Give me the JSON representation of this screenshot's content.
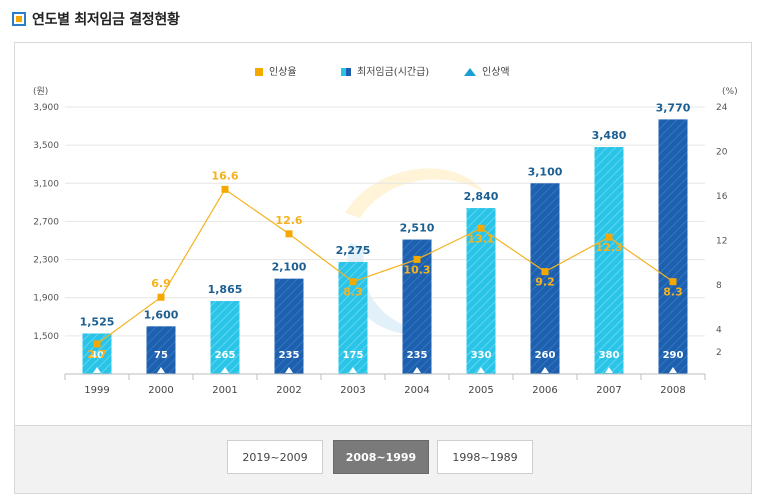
{
  "page": {
    "title": "연도별 최저임금 결정현황"
  },
  "periods": {
    "items": [
      "2019~2009",
      "2008~1999",
      "1998~1989"
    ],
    "active_index": 1
  },
  "chart_data": {
    "type": "bar",
    "categories": [
      "1999",
      "2000",
      "2001",
      "2002",
      "2003",
      "2004",
      "2005",
      "2006",
      "2007",
      "2008"
    ],
    "series": [
      {
        "name": "최저임금(시간급)",
        "values": [
          1525,
          1600,
          1865,
          2100,
          2275,
          2510,
          2840,
          3100,
          3480,
          3770
        ],
        "labels": [
          "1,525",
          "1,600",
          "1,865",
          "2,100",
          "2,275",
          "2,510",
          "2,840",
          "3,100",
          "3,480",
          "3,770"
        ]
      },
      {
        "name": "인상율",
        "values": [
          2.7,
          6.9,
          16.6,
          12.6,
          8.3,
          10.3,
          13.1,
          9.2,
          12.3,
          8.3
        ],
        "labels": [
          "2.7",
          "6.9",
          "16.6",
          "12.6",
          "8.3",
          "10.3",
          "13.1",
          "9.2",
          "12.3",
          "8.3"
        ]
      },
      {
        "name": "인상액",
        "values": [
          40,
          75,
          265,
          235,
          175,
          235,
          330,
          260,
          380,
          290
        ],
        "labels": [
          "40",
          "75",
          "265",
          "235",
          "175",
          "235",
          "330",
          "260",
          "380",
          "290"
        ]
      }
    ],
    "bar_colors": [
      "#29c4e8",
      "#1e5fae",
      "#29c4e8",
      "#1e5fae",
      "#29c4e8",
      "#1e5fae",
      "#29c4e8",
      "#1e5fae",
      "#29c4e8",
      "#1e5fae"
    ],
    "line_color": "#f5b21e",
    "marker_color": "#f5a800",
    "value_label_color": "#1d5f91",
    "legend": {
      "placement": "top-center",
      "items": [
        "인상율",
        "최저임금(시간급)",
        "인상액"
      ]
    },
    "y_left": {
      "label": "(원)",
      "ylim": [
        1100,
        3900
      ],
      "ticks": [
        1500,
        1900,
        2300,
        2700,
        3100,
        3500,
        3900
      ],
      "tick_labels": [
        "1,500",
        "1,900",
        "2,300",
        "2,700",
        "3,100",
        "3,500",
        "3,900"
      ]
    },
    "y_right": {
      "label": "(%)",
      "ylim": [
        0,
        24
      ],
      "ticks": [
        2,
        4,
        8,
        12,
        16,
        20,
        24
      ],
      "tick_labels": [
        "2",
        "4",
        "8",
        "12",
        "16",
        "20",
        "24"
      ]
    },
    "grid": true
  }
}
